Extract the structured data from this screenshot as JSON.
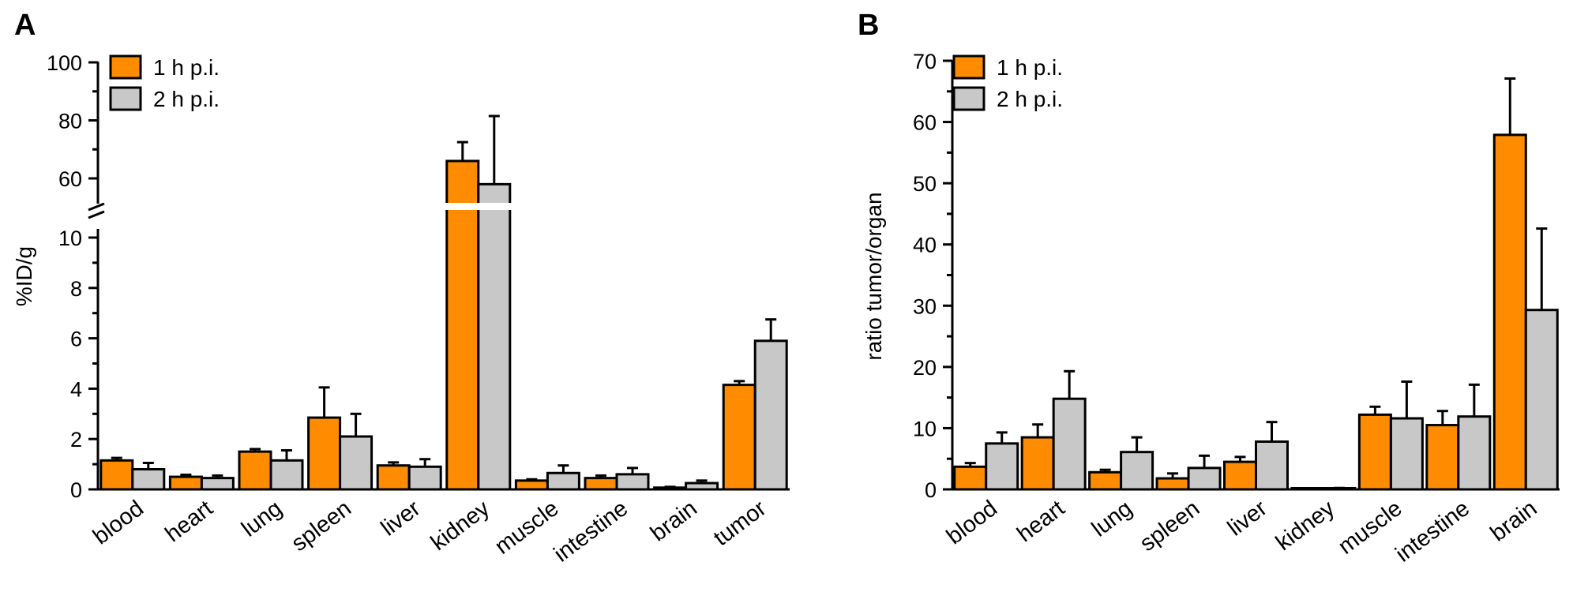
{
  "chart_data": [
    {
      "panel": "A",
      "type": "bar",
      "title": "",
      "xlabel": "",
      "ylabel": "%ID/g",
      "axis_break": {
        "lower": [
          0,
          10
        ],
        "upper": [
          50,
          100
        ]
      },
      "yticks_lower": [
        0,
        2,
        4,
        6,
        8,
        10
      ],
      "yticks_upper": [
        60,
        80,
        100
      ],
      "categories": [
        "blood",
        "heart",
        "lung",
        "spleen",
        "liver",
        "kidney",
        "muscle",
        "intestine",
        "brain",
        "tumor"
      ],
      "series": [
        {
          "name": "1 h p.i.",
          "color": "#FF8C00",
          "values": [
            1.15,
            0.5,
            1.5,
            2.85,
            0.95,
            66,
            0.35,
            0.45,
            0.07,
            4.15
          ],
          "errors": [
            0.1,
            0.08,
            0.1,
            1.2,
            0.12,
            6.5,
            0.05,
            0.1,
            0.03,
            0.15
          ]
        },
        {
          "name": "2 h p.i.",
          "color": "#C8C8C8",
          "values": [
            0.8,
            0.45,
            1.15,
            2.1,
            0.9,
            58,
            0.65,
            0.6,
            0.25,
            5.9
          ],
          "errors": [
            0.25,
            0.1,
            0.4,
            0.9,
            0.3,
            23.5,
            0.3,
            0.25,
            0.1,
            0.85
          ]
        }
      ]
    },
    {
      "panel": "B",
      "type": "bar",
      "title": "",
      "xlabel": "",
      "ylabel": "ratio tumor/organ",
      "ylim": [
        0,
        70
      ],
      "yticks": [
        0,
        10,
        20,
        30,
        40,
        50,
        60,
        70
      ],
      "categories": [
        "blood",
        "heart",
        "lung",
        "spleen",
        "liver",
        "kidney",
        "muscle",
        "intestine",
        "brain"
      ],
      "series": [
        {
          "name": "1 h p.i.",
          "color": "#FF8C00",
          "values": [
            3.7,
            8.5,
            2.8,
            1.8,
            4.5,
            0.08,
            12.2,
            10.5,
            57.9
          ],
          "errors": [
            0.6,
            2.1,
            0.4,
            0.8,
            0.8,
            0.02,
            1.3,
            2.3,
            9.2
          ]
        },
        {
          "name": "2 h p.i.",
          "color": "#C8C8C8",
          "values": [
            7.5,
            14.8,
            6.1,
            3.5,
            7.8,
            0.18,
            11.6,
            11.9,
            29.3
          ],
          "errors": [
            1.8,
            4.5,
            2.4,
            2.0,
            3.2,
            0.05,
            6.0,
            5.2,
            13.3
          ]
        }
      ]
    }
  ]
}
